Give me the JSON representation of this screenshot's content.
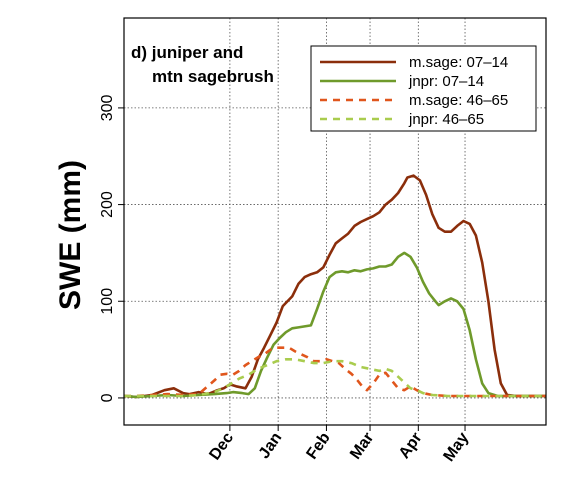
{
  "chart_data": {
    "type": "line",
    "title_lines": [
      "d) juniper and",
      "mtn sagebrush"
    ],
    "ylabel": "SWE (mm)",
    "xlabel": "",
    "x_months": [
      "Dec",
      "Jan",
      "Feb",
      "Mar",
      "Apr",
      "May"
    ],
    "month_positions": [
      60,
      91,
      122,
      150,
      181,
      211
    ],
    "xlim": [
      -8,
      263
    ],
    "ylim": [
      -28,
      393
    ],
    "yticks": [
      0,
      100,
      200,
      300
    ],
    "grid": true,
    "legend_position": "top-right",
    "series": [
      {
        "name": "m.sage: 07–14",
        "color": "#8b2e0b",
        "dash": "solid",
        "points": [
          [
            -8,
            2
          ],
          [
            0,
            1
          ],
          [
            10,
            3
          ],
          [
            18,
            8
          ],
          [
            24,
            10
          ],
          [
            30,
            5
          ],
          [
            34,
            4
          ],
          [
            40,
            6
          ],
          [
            46,
            4
          ],
          [
            52,
            8
          ],
          [
            56,
            10
          ],
          [
            60,
            14
          ],
          [
            64,
            12
          ],
          [
            70,
            10
          ],
          [
            74,
            22
          ],
          [
            78,
            40
          ],
          [
            82,
            52
          ],
          [
            86,
            65
          ],
          [
            90,
            78
          ],
          [
            94,
            95
          ],
          [
            100,
            105
          ],
          [
            104,
            118
          ],
          [
            108,
            125
          ],
          [
            112,
            128
          ],
          [
            116,
            130
          ],
          [
            120,
            135
          ],
          [
            124,
            148
          ],
          [
            128,
            160
          ],
          [
            132,
            165
          ],
          [
            136,
            170
          ],
          [
            140,
            178
          ],
          [
            144,
            182
          ],
          [
            148,
            185
          ],
          [
            152,
            188
          ],
          [
            156,
            192
          ],
          [
            160,
            200
          ],
          [
            164,
            205
          ],
          [
            168,
            212
          ],
          [
            172,
            222
          ],
          [
            174,
            228
          ],
          [
            178,
            230
          ],
          [
            182,
            225
          ],
          [
            186,
            210
          ],
          [
            190,
            190
          ],
          [
            194,
            176
          ],
          [
            198,
            172
          ],
          [
            202,
            172
          ],
          [
            206,
            178
          ],
          [
            210,
            183
          ],
          [
            214,
            180
          ],
          [
            218,
            168
          ],
          [
            222,
            140
          ],
          [
            226,
            100
          ],
          [
            230,
            50
          ],
          [
            234,
            15
          ],
          [
            238,
            3
          ],
          [
            244,
            2
          ],
          [
            263,
            2
          ]
        ]
      },
      {
        "name": "jnpr: 07–14",
        "color": "#6f9a2b",
        "dash": "solid",
        "points": [
          [
            -8,
            2
          ],
          [
            0,
            1
          ],
          [
            10,
            2
          ],
          [
            20,
            3
          ],
          [
            30,
            2
          ],
          [
            40,
            3
          ],
          [
            50,
            4
          ],
          [
            58,
            5
          ],
          [
            62,
            6
          ],
          [
            68,
            5
          ],
          [
            72,
            4
          ],
          [
            76,
            10
          ],
          [
            80,
            28
          ],
          [
            84,
            42
          ],
          [
            88,
            55
          ],
          [
            92,
            62
          ],
          [
            96,
            68
          ],
          [
            100,
            72
          ],
          [
            104,
            73
          ],
          [
            108,
            74
          ],
          [
            112,
            75
          ],
          [
            116,
            92
          ],
          [
            120,
            110
          ],
          [
            124,
            125
          ],
          [
            128,
            130
          ],
          [
            132,
            131
          ],
          [
            136,
            130
          ],
          [
            140,
            132
          ],
          [
            144,
            131
          ],
          [
            148,
            133
          ],
          [
            152,
            134
          ],
          [
            156,
            136
          ],
          [
            160,
            136
          ],
          [
            164,
            138
          ],
          [
            168,
            146
          ],
          [
            172,
            150
          ],
          [
            176,
            146
          ],
          [
            180,
            135
          ],
          [
            184,
            120
          ],
          [
            188,
            108
          ],
          [
            192,
            100
          ],
          [
            194,
            96
          ],
          [
            198,
            100
          ],
          [
            202,
            103
          ],
          [
            206,
            100
          ],
          [
            210,
            92
          ],
          [
            214,
            70
          ],
          [
            218,
            40
          ],
          [
            222,
            15
          ],
          [
            226,
            5
          ],
          [
            232,
            2
          ],
          [
            263,
            2
          ]
        ]
      },
      {
        "name": "m.sage: 46–65",
        "color": "#e0561c",
        "dash": "dashed",
        "points": [
          [
            -8,
            2
          ],
          [
            0,
            2
          ],
          [
            10,
            3
          ],
          [
            20,
            4
          ],
          [
            30,
            3
          ],
          [
            40,
            4
          ],
          [
            50,
            18
          ],
          [
            54,
            24
          ],
          [
            58,
            25
          ],
          [
            62,
            24
          ],
          [
            66,
            28
          ],
          [
            70,
            34
          ],
          [
            74,
            38
          ],
          [
            78,
            42
          ],
          [
            82,
            45
          ],
          [
            86,
            50
          ],
          [
            90,
            52
          ],
          [
            94,
            52
          ],
          [
            98,
            52
          ],
          [
            102,
            48
          ],
          [
            106,
            45
          ],
          [
            110,
            42
          ],
          [
            114,
            38
          ],
          [
            118,
            38
          ],
          [
            122,
            40
          ],
          [
            126,
            38
          ],
          [
            130,
            36
          ],
          [
            134,
            30
          ],
          [
            138,
            25
          ],
          [
            142,
            18
          ],
          [
            146,
            10
          ],
          [
            148,
            8
          ],
          [
            152,
            15
          ],
          [
            156,
            24
          ],
          [
            160,
            26
          ],
          [
            164,
            18
          ],
          [
            168,
            10
          ],
          [
            172,
            8
          ],
          [
            176,
            12
          ],
          [
            180,
            8
          ],
          [
            184,
            5
          ],
          [
            190,
            3
          ],
          [
            200,
            2
          ],
          [
            263,
            2
          ]
        ]
      },
      {
        "name": "jnpr: 46–65",
        "color": "#a9cc4e",
        "dash": "dashed",
        "points": [
          [
            -8,
            2
          ],
          [
            0,
            2
          ],
          [
            10,
            2
          ],
          [
            20,
            2
          ],
          [
            30,
            2
          ],
          [
            40,
            3
          ],
          [
            50,
            6
          ],
          [
            56,
            10
          ],
          [
            60,
            14
          ],
          [
            66,
            20
          ],
          [
            72,
            24
          ],
          [
            78,
            30
          ],
          [
            84,
            34
          ],
          [
            90,
            38
          ],
          [
            96,
            40
          ],
          [
            102,
            40
          ],
          [
            108,
            38
          ],
          [
            114,
            36
          ],
          [
            120,
            36
          ],
          [
            126,
            38
          ],
          [
            132,
            38
          ],
          [
            138,
            36
          ],
          [
            144,
            32
          ],
          [
            150,
            30
          ],
          [
            156,
            28
          ],
          [
            160,
            30
          ],
          [
            164,
            28
          ],
          [
            168,
            22
          ],
          [
            172,
            16
          ],
          [
            176,
            10
          ],
          [
            180,
            8
          ],
          [
            184,
            5
          ],
          [
            190,
            3
          ],
          [
            200,
            2
          ],
          [
            263,
            2
          ]
        ]
      }
    ]
  }
}
